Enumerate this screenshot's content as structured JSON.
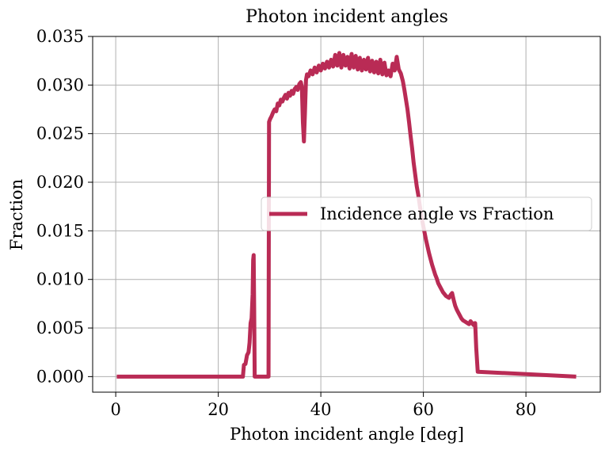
{
  "chart_data": {
    "type": "line",
    "title": "Photon incident angles",
    "xlabel": "Photon incident angle [deg]",
    "ylabel": "Fraction",
    "xlim": [
      -4.5,
      94.5
    ],
    "ylim": [
      -0.0016,
      0.035
    ],
    "xticks": [
      0,
      20,
      40,
      60,
      80
    ],
    "xtick_labels": [
      "0",
      "20",
      "40",
      "60",
      "80"
    ],
    "yticks": [
      0.0,
      0.005,
      0.01,
      0.015,
      0.02,
      0.025,
      0.03,
      0.035
    ],
    "ytick_labels": [
      "0.000",
      "0.005",
      "0.010",
      "0.015",
      "0.020",
      "0.025",
      "0.030",
      "0.035"
    ],
    "grid": true,
    "legend_position": "center-right",
    "series": [
      {
        "name": "Incidence angle vs Fraction",
        "color": "#b92b55",
        "x": [
          0.2,
          24.8,
          25.0,
          25.3,
          25.6,
          25.9,
          26.1,
          26.3,
          26.5,
          26.7,
          26.8,
          26.9,
          27.0,
          27.1,
          27.2,
          29.6,
          29.8,
          29.9,
          30.1,
          30.4,
          30.7,
          31.0,
          31.3,
          31.6,
          31.9,
          32.2,
          32.5,
          32.8,
          33.1,
          33.4,
          33.7,
          34.0,
          34.3,
          34.6,
          34.9,
          35.2,
          35.5,
          35.8,
          36.1,
          36.3,
          36.5,
          36.7,
          36.9,
          37.1,
          37.3,
          37.6,
          38.0,
          38.4,
          38.8,
          39.2,
          39.6,
          40.0,
          40.4,
          40.8,
          41.2,
          41.6,
          42.0,
          42.4,
          42.8,
          43.2,
          43.6,
          44.0,
          44.4,
          44.8,
          45.2,
          45.6,
          46.0,
          46.4,
          46.8,
          47.2,
          47.6,
          48.0,
          48.4,
          48.8,
          49.2,
          49.6,
          50.0,
          50.4,
          50.8,
          51.2,
          51.6,
          52.0,
          52.4,
          52.8,
          53.2,
          53.6,
          54.0,
          54.4,
          54.8,
          55.2,
          55.6,
          56.0,
          56.3,
          56.6,
          56.9,
          57.2,
          57.5,
          57.8,
          58.1,
          58.4,
          58.7,
          59.0,
          59.3,
          59.6,
          59.9,
          60.2,
          60.5,
          60.8,
          61.1,
          61.4,
          61.7,
          62.0,
          62.3,
          62.6,
          62.9,
          63.2,
          63.5,
          63.8,
          64.1,
          64.4,
          64.7,
          65.0,
          65.3,
          65.6,
          65.9,
          66.2,
          66.5,
          66.8,
          67.1,
          67.4,
          67.7,
          68.0,
          68.3,
          68.6,
          68.9,
          69.2,
          69.5,
          69.8,
          70.0,
          70.1,
          70.3,
          70.6,
          89.8
        ],
        "y": [
          0.0,
          0.0,
          0.0012,
          0.0013,
          0.0022,
          0.0025,
          0.0035,
          0.0055,
          0.006,
          0.0085,
          0.012,
          0.0125,
          0.007,
          0.0,
          0.0,
          0.0,
          0.0,
          0.0262,
          0.0265,
          0.0268,
          0.0272,
          0.0275,
          0.0273,
          0.0281,
          0.0279,
          0.0285,
          0.0283,
          0.0287,
          0.029,
          0.0286,
          0.0292,
          0.0289,
          0.0294,
          0.0291,
          0.0296,
          0.0298,
          0.0295,
          0.0301,
          0.0303,
          0.0298,
          0.0262,
          0.0242,
          0.0271,
          0.0305,
          0.0311,
          0.0309,
          0.0315,
          0.0311,
          0.0318,
          0.0313,
          0.032,
          0.0315,
          0.0322,
          0.0317,
          0.0324,
          0.0318,
          0.0326,
          0.0319,
          0.0331,
          0.032,
          0.0333,
          0.0318,
          0.0331,
          0.032,
          0.0329,
          0.0317,
          0.0332,
          0.0318,
          0.033,
          0.0316,
          0.0328,
          0.0315,
          0.0326,
          0.0316,
          0.0328,
          0.0314,
          0.0325,
          0.0313,
          0.0324,
          0.0312,
          0.0326,
          0.0311,
          0.0323,
          0.031,
          0.0315,
          0.0309,
          0.0322,
          0.0315,
          0.0329,
          0.0316,
          0.0312,
          0.0304,
          0.0295,
          0.0285,
          0.0275,
          0.0262,
          0.0248,
          0.0235,
          0.022,
          0.0208,
          0.0196,
          0.0187,
          0.0176,
          0.0166,
          0.0157,
          0.0149,
          0.0141,
          0.0134,
          0.0127,
          0.0121,
          0.0115,
          0.011,
          0.0105,
          0.0101,
          0.0096,
          0.0093,
          0.009,
          0.0087,
          0.0085,
          0.0083,
          0.0082,
          0.0081,
          0.0084,
          0.0086,
          0.0079,
          0.0073,
          0.0069,
          0.0066,
          0.0063,
          0.006,
          0.0058,
          0.0057,
          0.0056,
          0.0055,
          0.0054,
          0.0057,
          0.0055,
          0.0053,
          0.0055,
          0.0055,
          0.003,
          0.0005,
          0.0
        ]
      }
    ]
  }
}
